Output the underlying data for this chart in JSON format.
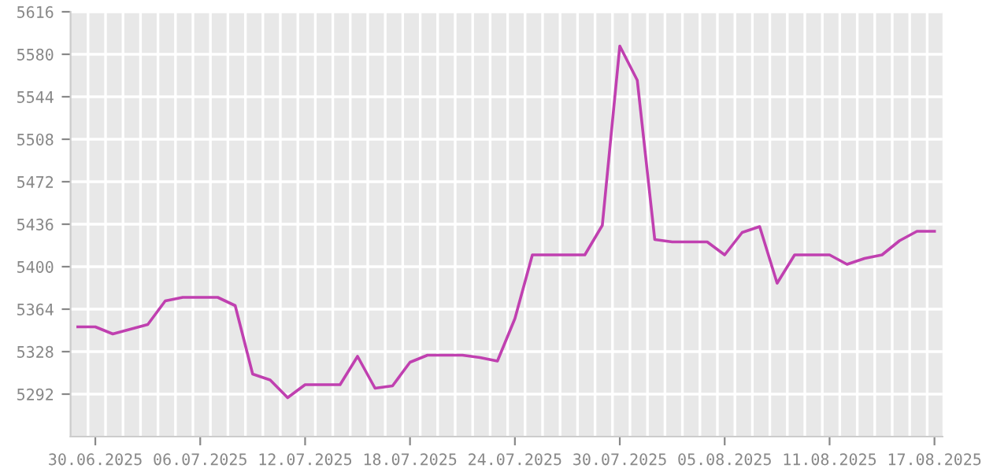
{
  "chart_data": {
    "type": "line",
    "x": [
      "2025-06-29",
      "2025-06-30",
      "2025-07-01",
      "2025-07-02",
      "2025-07-03",
      "2025-07-04",
      "2025-07-05",
      "2025-07-06",
      "2025-07-07",
      "2025-07-08",
      "2025-07-09",
      "2025-07-10",
      "2025-07-11",
      "2025-07-12",
      "2025-07-13",
      "2025-07-14",
      "2025-07-15",
      "2025-07-16",
      "2025-07-17",
      "2025-07-18",
      "2025-07-19",
      "2025-07-20",
      "2025-07-21",
      "2025-07-22",
      "2025-07-23",
      "2025-07-24",
      "2025-07-25",
      "2025-07-26",
      "2025-07-27",
      "2025-07-28",
      "2025-07-29",
      "2025-07-30",
      "2025-07-31",
      "2025-08-01",
      "2025-08-02",
      "2025-08-03",
      "2025-08-04",
      "2025-08-05",
      "2025-08-06",
      "2025-08-07",
      "2025-08-08",
      "2025-08-09",
      "2025-08-10",
      "2025-08-11",
      "2025-08-12",
      "2025-08-13",
      "2025-08-14",
      "2025-08-15",
      "2025-08-16",
      "2025-08-17"
    ],
    "values": [
      5349,
      5349,
      5343,
      5347,
      5351,
      5371,
      5374,
      5374,
      5374,
      5367,
      5309,
      5304,
      5289,
      5300,
      5300,
      5300,
      5324,
      5297,
      5299,
      5319,
      5325,
      5325,
      5325,
      5323,
      5320,
      5356,
      5410,
      5410,
      5410,
      5410,
      5435,
      5587,
      5558,
      5423,
      5421,
      5421,
      5421,
      5410,
      5429,
      5434,
      5386,
      5410,
      5410,
      5410,
      5402,
      5407,
      5410,
      5422,
      5430,
      5430
    ],
    "color": "#c040b0",
    "xlim": [
      "2025-06-28T14:00",
      "2025-08-17T11:00"
    ],
    "ylim": [
      5256,
      5616
    ],
    "xticks": [
      {
        "value": "2025-06-30",
        "label": "30.06.2025"
      },
      {
        "value": "2025-07-06",
        "label": "06.07.2025"
      },
      {
        "value": "2025-07-12",
        "label": "12.07.2025"
      },
      {
        "value": "2025-07-18",
        "label": "18.07.2025"
      },
      {
        "value": "2025-07-24",
        "label": "24.07.2025"
      },
      {
        "value": "2025-07-30",
        "label": "30.07.2025"
      },
      {
        "value": "2025-08-05",
        "label": "05.08.2025"
      },
      {
        "value": "2025-08-11",
        "label": "11.08.2025"
      },
      {
        "value": "2025-08-17",
        "label": "17.08.2025"
      },
      {
        "value": "2025-06-29T14:00",
        "label": null
      },
      {
        "value": "2025-06-30T14:00",
        "label": null
      },
      {
        "value": "2025-07-01T14:00",
        "label": null
      },
      {
        "value": "2025-07-02T14:00",
        "label": null
      },
      {
        "value": "2025-07-03T14:00",
        "label": null
      },
      {
        "value": "2025-07-04T14:00",
        "label": null
      },
      {
        "value": "2025-07-05T14:00",
        "label": null
      },
      {
        "value": "2025-07-06T14:00",
        "label": null
      },
      {
        "value": "2025-07-07T14:00",
        "label": null
      },
      {
        "value": "2025-07-08T14:00",
        "label": null
      },
      {
        "value": "2025-07-09T14:00",
        "label": null
      },
      {
        "value": "2025-07-10T14:00",
        "label": null
      },
      {
        "value": "2025-07-11T14:00",
        "label": null
      },
      {
        "value": "2025-07-12T14:00",
        "label": null
      },
      {
        "value": "2025-07-13T14:00",
        "label": null
      },
      {
        "value": "2025-07-14T14:00",
        "label": null
      },
      {
        "value": "2025-07-15T14:00",
        "label": null
      },
      {
        "value": "2025-07-16T14:00",
        "label": null
      },
      {
        "value": "2025-07-17T14:00",
        "label": null
      },
      {
        "value": "2025-07-18T14:00",
        "label": null
      },
      {
        "value": "2025-07-19T14:00",
        "label": null
      },
      {
        "value": "2025-07-20T14:00",
        "label": null
      },
      {
        "value": "2025-07-21T14:00",
        "label": null
      },
      {
        "value": "2025-07-22T14:00",
        "label": null
      },
      {
        "value": "2025-07-23T14:00",
        "label": null
      },
      {
        "value": "2025-07-24T14:00",
        "label": null
      },
      {
        "value": "2025-07-25T14:00",
        "label": null
      },
      {
        "value": "2025-07-26T14:00",
        "label": null
      },
      {
        "value": "2025-07-27T14:00",
        "label": null
      },
      {
        "value": "2025-07-28T14:00",
        "label": null
      },
      {
        "value": "2025-07-29T14:00",
        "label": null
      },
      {
        "value": "2025-07-30T14:00",
        "label": null
      },
      {
        "value": "2025-07-31T14:00",
        "label": null
      },
      {
        "value": "2025-08-01T14:00",
        "label": null
      },
      {
        "value": "2025-08-02T14:00",
        "label": null
      },
      {
        "value": "2025-08-03T14:00",
        "label": null
      },
      {
        "value": "2025-08-04T14:00",
        "label": null
      },
      {
        "value": "2025-08-05T14:00",
        "label": null
      },
      {
        "value": "2025-08-06T14:00",
        "label": null
      },
      {
        "value": "2025-08-07T14:00",
        "label": null
      },
      {
        "value": "2025-08-08T14:00",
        "label": null
      },
      {
        "value": "2025-08-09T14:00",
        "label": null
      },
      {
        "value": "2025-08-10T14:00",
        "label": null
      },
      {
        "value": "2025-08-11T14:00",
        "label": null
      },
      {
        "value": "2025-08-12T14:00",
        "label": null
      },
      {
        "value": "2025-08-13T14:00",
        "label": null
      },
      {
        "value": "2025-08-14T14:00",
        "label": null
      },
      {
        "value": "2025-08-15T14:00",
        "label": null
      },
      {
        "value": "2025-08-16T14:00",
        "label": null
      }
    ],
    "yticks": [
      5292,
      5328,
      5364,
      5400,
      5436,
      5472,
      5508,
      5544,
      5580,
      5616
    ],
    "grid": true
  }
}
